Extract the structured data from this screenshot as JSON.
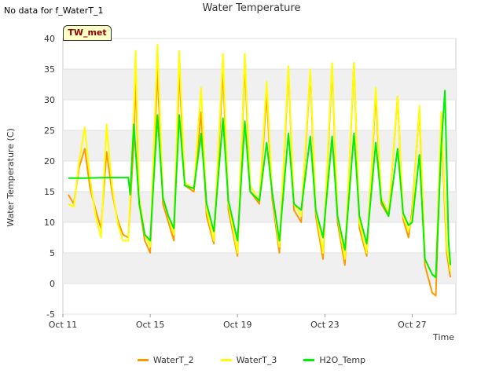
{
  "header": {
    "no_data_text": "No data for f_WaterT_1",
    "title": "Water Temperature"
  },
  "badge": {
    "label": "TW_met"
  },
  "chart_data": {
    "type": "line",
    "title": "Water Temperature",
    "xlabel": "Time",
    "ylabel": "Water Temperature (C)",
    "ylim": [
      -5,
      40
    ],
    "yticks": [
      -5,
      0,
      5,
      10,
      15,
      20,
      25,
      30,
      35,
      40
    ],
    "xlim": [
      "2023-10-11",
      "2023-10-29"
    ],
    "xticks": [
      {
        "date": "2023-10-11",
        "label": "Oct 11"
      },
      {
        "date": "2023-10-15",
        "label": "Oct 15"
      },
      {
        "date": "2023-10-19",
        "label": "Oct 19"
      },
      {
        "date": "2023-10-23",
        "label": "Oct 23"
      },
      {
        "date": "2023-10-27",
        "label": "Oct 27"
      }
    ],
    "grid": "horizontal bands",
    "legend_position": "bottom",
    "series": [
      {
        "name": "WaterT_2",
        "color": "#ff9900",
        "points": [
          [
            "2023-10-11 06:00",
            14.5
          ],
          [
            "2023-10-11 12:00",
            13.0
          ],
          [
            "2023-10-11 18:00",
            19.0
          ],
          [
            "2023-10-12 00:00",
            22.0
          ],
          [
            "2023-10-12 06:00",
            15.5
          ],
          [
            "2023-10-12 12:00",
            12.0
          ],
          [
            "2023-10-12 18:00",
            9.0
          ],
          [
            "2023-10-13 00:00",
            21.5
          ],
          [
            "2023-10-13 06:00",
            15.0
          ],
          [
            "2023-10-13 12:00",
            10.5
          ],
          [
            "2023-10-13 18:00",
            8.0
          ],
          [
            "2023-10-14 00:00",
            7.5
          ],
          [
            "2023-10-14 06:00",
            23.0
          ],
          [
            "2023-10-14 08:00",
            34.0
          ],
          [
            "2023-10-14 12:00",
            13.0
          ],
          [
            "2023-10-14 18:00",
            7.0
          ],
          [
            "2023-10-15 00:00",
            5.0
          ],
          [
            "2023-10-15 08:00",
            35.0
          ],
          [
            "2023-10-15 14:00",
            13.0
          ],
          [
            "2023-10-15 20:00",
            10.0
          ],
          [
            "2023-10-16 02:00",
            7.0
          ],
          [
            "2023-10-16 08:00",
            35.0
          ],
          [
            "2023-10-16 14:00",
            16.0
          ],
          [
            "2023-10-17 00:00",
            15.0
          ],
          [
            "2023-10-17 08:00",
            28.0
          ],
          [
            "2023-10-17 14:00",
            11.0
          ],
          [
            "2023-10-17 22:00",
            6.5
          ],
          [
            "2023-10-18 08:00",
            35.0
          ],
          [
            "2023-10-18 14:00",
            12.0
          ],
          [
            "2023-10-19 00:00",
            4.5
          ],
          [
            "2023-10-19 08:00",
            36.0
          ],
          [
            "2023-10-19 14:00",
            15.0
          ],
          [
            "2023-10-20 00:00",
            13.0
          ],
          [
            "2023-10-20 08:00",
            31.0
          ],
          [
            "2023-10-20 14:00",
            14.0
          ],
          [
            "2023-10-20 22:00",
            5.0
          ],
          [
            "2023-10-21 08:00",
            35.0
          ],
          [
            "2023-10-21 14:00",
            12.0
          ],
          [
            "2023-10-21 22:00",
            10.0
          ],
          [
            "2023-10-22 08:00",
            34.5
          ],
          [
            "2023-10-22 14:00",
            11.0
          ],
          [
            "2023-10-22 22:00",
            4.0
          ],
          [
            "2023-10-23 08:00",
            35.5
          ],
          [
            "2023-10-23 14:00",
            10.0
          ],
          [
            "2023-10-23 22:00",
            3.0
          ],
          [
            "2023-10-24 08:00",
            36.0
          ],
          [
            "2023-10-24 14:00",
            9.0
          ],
          [
            "2023-10-24 22:00",
            4.5
          ],
          [
            "2023-10-25 08:00",
            31.0
          ],
          [
            "2023-10-25 14:00",
            13.0
          ],
          [
            "2023-10-25 22:00",
            11.0
          ],
          [
            "2023-10-26 08:00",
            30.5
          ],
          [
            "2023-10-26 14:00",
            10.5
          ],
          [
            "2023-10-26 20:00",
            7.5
          ],
          [
            "2023-10-27 00:00",
            12.0
          ],
          [
            "2023-10-27 08:00",
            28.5
          ],
          [
            "2023-10-27 14:00",
            3.0
          ],
          [
            "2023-10-27 22:00",
            -1.5
          ],
          [
            "2023-10-28 02:00",
            -2.0
          ],
          [
            "2023-10-28 08:00",
            26.0
          ],
          [
            "2023-10-28 14:00",
            5.0
          ],
          [
            "2023-10-28 18:00",
            1.0
          ]
        ]
      },
      {
        "name": "WaterT_3",
        "color": "#ffff00",
        "points": [
          [
            "2023-10-11 06:00",
            13.0
          ],
          [
            "2023-10-11 12:00",
            12.5
          ],
          [
            "2023-10-11 18:00",
            20.0
          ],
          [
            "2023-10-12 00:00",
            25.5
          ],
          [
            "2023-10-12 06:00",
            17.0
          ],
          [
            "2023-10-12 12:00",
            11.0
          ],
          [
            "2023-10-12 18:00",
            7.5
          ],
          [
            "2023-10-13 00:00",
            26.0
          ],
          [
            "2023-10-13 06:00",
            16.0
          ],
          [
            "2023-10-13 12:00",
            10.0
          ],
          [
            "2023-10-13 18:00",
            7.0
          ],
          [
            "2023-10-14 00:00",
            7.0
          ],
          [
            "2023-10-14 06:00",
            28.0
          ],
          [
            "2023-10-14 08:00",
            38.0
          ],
          [
            "2023-10-14 12:00",
            14.0
          ],
          [
            "2023-10-14 18:00",
            8.0
          ],
          [
            "2023-10-15 00:00",
            6.0
          ],
          [
            "2023-10-15 08:00",
            39.0
          ],
          [
            "2023-10-15 14:00",
            14.0
          ],
          [
            "2023-10-15 20:00",
            11.0
          ],
          [
            "2023-10-16 02:00",
            8.0
          ],
          [
            "2023-10-16 08:00",
            38.0
          ],
          [
            "2023-10-16 14:00",
            16.5
          ],
          [
            "2023-10-17 00:00",
            15.5
          ],
          [
            "2023-10-17 08:00",
            32.0
          ],
          [
            "2023-10-17 14:00",
            12.0
          ],
          [
            "2023-10-17 22:00",
            7.0
          ],
          [
            "2023-10-18 08:00",
            37.5
          ],
          [
            "2023-10-18 14:00",
            13.0
          ],
          [
            "2023-10-19 00:00",
            5.0
          ],
          [
            "2023-10-19 08:00",
            37.5
          ],
          [
            "2023-10-19 14:00",
            16.0
          ],
          [
            "2023-10-20 00:00",
            13.5
          ],
          [
            "2023-10-20 08:00",
            33.0
          ],
          [
            "2023-10-20 14:00",
            15.0
          ],
          [
            "2023-10-20 22:00",
            6.0
          ],
          [
            "2023-10-21 08:00",
            35.5
          ],
          [
            "2023-10-21 14:00",
            13.0
          ],
          [
            "2023-10-21 22:00",
            11.0
          ],
          [
            "2023-10-22 08:00",
            35.0
          ],
          [
            "2023-10-22 14:00",
            12.0
          ],
          [
            "2023-10-22 22:00",
            5.0
          ],
          [
            "2023-10-23 08:00",
            36.0
          ],
          [
            "2023-10-23 14:00",
            11.0
          ],
          [
            "2023-10-23 22:00",
            4.0
          ],
          [
            "2023-10-24 08:00",
            36.0
          ],
          [
            "2023-10-24 14:00",
            10.0
          ],
          [
            "2023-10-24 22:00",
            5.0
          ],
          [
            "2023-10-25 08:00",
            32.0
          ],
          [
            "2023-10-25 14:00",
            14.0
          ],
          [
            "2023-10-25 22:00",
            11.5
          ],
          [
            "2023-10-26 08:00",
            30.5
          ],
          [
            "2023-10-26 14:00",
            11.0
          ],
          [
            "2023-10-26 20:00",
            8.5
          ],
          [
            "2023-10-27 00:00",
            11.0
          ],
          [
            "2023-10-27 08:00",
            29.0
          ],
          [
            "2023-10-27 14:00",
            4.0
          ],
          [
            "2023-10-27 22:00",
            1.5
          ],
          [
            "2023-10-28 02:00",
            1.0
          ],
          [
            "2023-10-28 08:00",
            28.0
          ],
          [
            "2023-10-28 14:00",
            6.0
          ],
          [
            "2023-10-28 18:00",
            2.0
          ]
        ]
      },
      {
        "name": "H2O_Temp",
        "color": "#00ee00",
        "points": [
          [
            "2023-10-11 06:00",
            17.2
          ],
          [
            "2023-10-12 00:00",
            17.2
          ],
          [
            "2023-10-13 00:00",
            17.3
          ],
          [
            "2023-10-14 00:00",
            17.3
          ],
          [
            "2023-10-14 02:00",
            14.5
          ],
          [
            "2023-10-14 06:00",
            26.0
          ],
          [
            "2023-10-14 12:00",
            13.0
          ],
          [
            "2023-10-14 18:00",
            8.0
          ],
          [
            "2023-10-15 00:00",
            7.0
          ],
          [
            "2023-10-15 08:00",
            27.5
          ],
          [
            "2023-10-15 14:00",
            14.0
          ],
          [
            "2023-10-15 20:00",
            11.0
          ],
          [
            "2023-10-16 02:00",
            9.0
          ],
          [
            "2023-10-16 08:00",
            27.5
          ],
          [
            "2023-10-16 14:00",
            16.0
          ],
          [
            "2023-10-17 00:00",
            15.5
          ],
          [
            "2023-10-17 08:00",
            24.5
          ],
          [
            "2023-10-17 14:00",
            13.0
          ],
          [
            "2023-10-17 22:00",
            8.5
          ],
          [
            "2023-10-18 08:00",
            27.0
          ],
          [
            "2023-10-18 14:00",
            13.5
          ],
          [
            "2023-10-19 00:00",
            7.0
          ],
          [
            "2023-10-19 08:00",
            26.5
          ],
          [
            "2023-10-19 14:00",
            15.0
          ],
          [
            "2023-10-20 00:00",
            13.5
          ],
          [
            "2023-10-20 08:00",
            23.0
          ],
          [
            "2023-10-20 14:00",
            15.0
          ],
          [
            "2023-10-20 22:00",
            7.0
          ],
          [
            "2023-10-21 08:00",
            24.5
          ],
          [
            "2023-10-21 14:00",
            13.0
          ],
          [
            "2023-10-21 22:00",
            12.0
          ],
          [
            "2023-10-22 08:00",
            24.0
          ],
          [
            "2023-10-22 14:00",
            12.0
          ],
          [
            "2023-10-22 22:00",
            7.5
          ],
          [
            "2023-10-23 08:00",
            24.0
          ],
          [
            "2023-10-23 14:00",
            11.0
          ],
          [
            "2023-10-23 22:00",
            5.5
          ],
          [
            "2023-10-24 08:00",
            24.5
          ],
          [
            "2023-10-24 14:00",
            11.0
          ],
          [
            "2023-10-24 22:00",
            6.5
          ],
          [
            "2023-10-25 08:00",
            23.0
          ],
          [
            "2023-10-25 14:00",
            13.5
          ],
          [
            "2023-10-25 22:00",
            11.0
          ],
          [
            "2023-10-26 08:00",
            22.0
          ],
          [
            "2023-10-26 14:00",
            11.5
          ],
          [
            "2023-10-26 20:00",
            9.5
          ],
          [
            "2023-10-27 00:00",
            10.0
          ],
          [
            "2023-10-27 08:00",
            21.0
          ],
          [
            "2023-10-27 14:00",
            4.0
          ],
          [
            "2023-10-27 22:00",
            1.5
          ],
          [
            "2023-10-28 02:00",
            1.0
          ],
          [
            "2023-10-28 08:00",
            22.5
          ],
          [
            "2023-10-28 12:00",
            31.5
          ],
          [
            "2023-10-28 16:00",
            7.0
          ],
          [
            "2023-10-28 18:00",
            3.0
          ]
        ]
      }
    ]
  }
}
